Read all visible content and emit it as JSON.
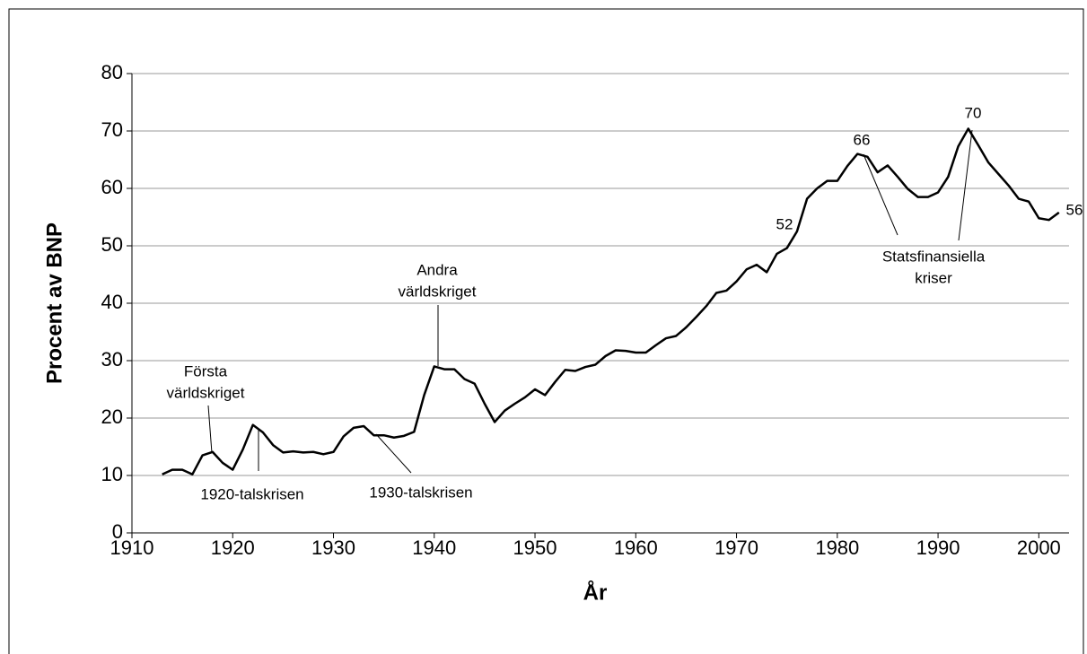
{
  "chart_data": {
    "type": "line",
    "y_label": "Procent av BNP",
    "x_label": "År",
    "x": [
      1913,
      1914,
      1915,
      1916,
      1917,
      1918,
      1919,
      1920,
      1921,
      1922,
      1923,
      1924,
      1925,
      1926,
      1927,
      1928,
      1929,
      1930,
      1931,
      1932,
      1933,
      1934,
      1935,
      1936,
      1937,
      1938,
      1939,
      1940,
      1941,
      1942,
      1943,
      1944,
      1945,
      1946,
      1947,
      1948,
      1949,
      1950,
      1951,
      1952,
      1953,
      1954,
      1955,
      1956,
      1957,
      1958,
      1959,
      1960,
      1961,
      1962,
      1963,
      1964,
      1965,
      1966,
      1967,
      1968,
      1969,
      1970,
      1971,
      1972,
      1973,
      1974,
      1975,
      1976,
      1977,
      1978,
      1979,
      1980,
      1981,
      1982,
      1983,
      1984,
      1985,
      1986,
      1987,
      1988,
      1989,
      1990,
      1991,
      1992,
      1993,
      1994,
      1995,
      1996,
      1997,
      1998,
      1999,
      2000,
      2001,
      2002
    ],
    "series": [
      {
        "color": "#000000",
        "values": [
          10.2,
          11,
          11,
          10.2,
          13.5,
          14.1,
          12.2,
          11,
          14.5,
          18.8,
          17.5,
          15.3,
          14,
          14.2,
          14,
          14.1,
          13.7,
          14.1,
          16.8,
          18.3,
          18.6,
          17,
          17,
          16.6,
          16.9,
          17.6,
          24,
          29,
          28.5,
          28.5,
          26.8,
          26,
          22.5,
          19.3,
          21.3,
          22.5,
          23.6,
          25,
          24,
          26.3,
          28.4,
          28.2,
          28.9,
          29.3,
          30.8,
          31.8,
          31.7,
          31.4,
          31.4,
          32.7,
          33.9,
          34.3,
          35.8,
          37.6,
          39.5,
          41.8,
          42.2,
          43.8,
          45.9,
          46.7,
          45.4,
          48.6,
          49.6,
          52.5,
          58.2,
          60,
          61.3,
          61.3,
          63.9,
          66,
          65.5,
          62.8,
          64,
          62,
          59.9,
          58.5,
          58.5,
          59.3,
          62,
          67.3,
          70.4,
          67.5,
          64.5,
          62.5,
          60.5,
          58.2,
          57.7,
          54.8,
          54.5,
          55.8
        ]
      }
    ],
    "xlim": [
      1910,
      2003
    ],
    "xticks": [
      1910,
      1920,
      1930,
      1940,
      1950,
      1960,
      1970,
      1980,
      1990,
      2000
    ],
    "ylim": [
      0,
      80
    ],
    "yticks": [
      0,
      10,
      20,
      30,
      40,
      50,
      60,
      70,
      80
    ],
    "grid": true,
    "annotations": [
      [
        "Första",
        "världskriget"
      ],
      [
        "1920-talskrisen"
      ],
      [
        "1930-talskrisen"
      ],
      [
        "Andra",
        "världskriget"
      ],
      [
        "52"
      ],
      [
        "66"
      ],
      [
        "70"
      ],
      [
        "56"
      ],
      [
        "Statsfinansiella",
        "kriser"
      ]
    ]
  }
}
